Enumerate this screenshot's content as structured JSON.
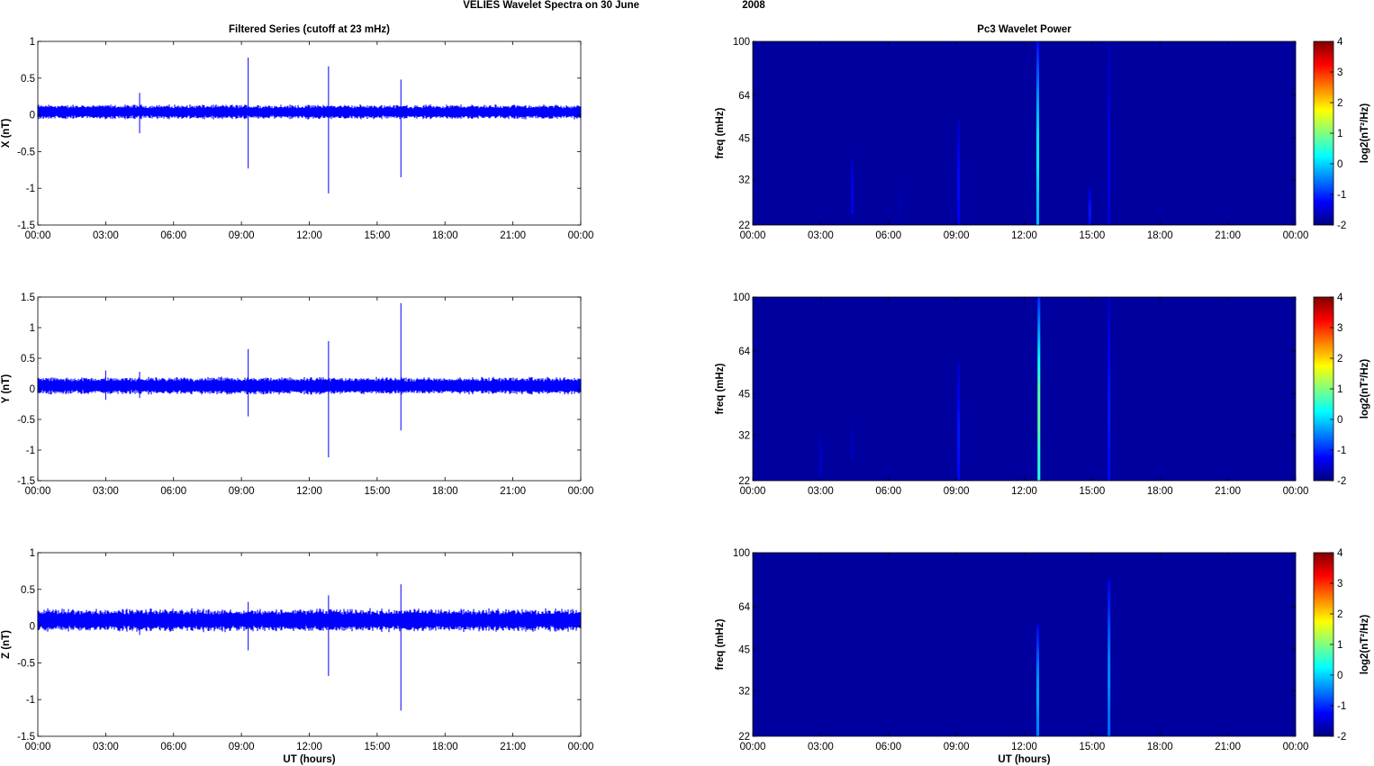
{
  "figure": {
    "title_left": "VELIES Wavelet Spectra on 30 June",
    "title_right": "2008"
  },
  "chart_data": [
    {
      "type": "line",
      "panel": "X",
      "title": "Filtered Series (cutoff at 23 mHz)",
      "xlabel": "",
      "ylabel": "X (nT)",
      "x_ticks": [
        "00:00",
        "03:00",
        "06:00",
        "09:00",
        "12:00",
        "15:00",
        "18:00",
        "21:00",
        "00:00"
      ],
      "xlim_hours": [
        0,
        24
      ],
      "ylim": [
        -1.5,
        1
      ],
      "y_ticks": [
        -1.5,
        -1,
        -0.5,
        0,
        0.5,
        1
      ],
      "y_tick_labels": [
        "-1.5",
        "-1",
        "-0.5",
        "0",
        "0.5",
        "1"
      ],
      "color": "#0000ff",
      "noise": {
        "mean": 0.04,
        "amplitude": 0.07
      },
      "spikes": [
        {
          "hour": 4.5,
          "max": 0.3,
          "min": -0.25
        },
        {
          "hour": 9.3,
          "max": 0.78,
          "min": -0.73
        },
        {
          "hour": 12.85,
          "max": 0.66,
          "min": -1.07
        },
        {
          "hour": 16.05,
          "max": 0.48,
          "min": -0.85
        }
      ]
    },
    {
      "type": "line",
      "panel": "Y",
      "title": "",
      "xlabel": "",
      "ylabel": "Y (nT)",
      "x_ticks": [
        "00:00",
        "03:00",
        "06:00",
        "09:00",
        "12:00",
        "15:00",
        "18:00",
        "21:00",
        "00:00"
      ],
      "xlim_hours": [
        0,
        24
      ],
      "ylim": [
        -1.5,
        1.5
      ],
      "y_ticks": [
        -1.5,
        -1,
        -0.5,
        0,
        0.5,
        1,
        1.5
      ],
      "y_tick_labels": [
        "-1.5",
        "-1",
        "-0.5",
        "0",
        "0.5",
        "1",
        "1.5"
      ],
      "color": "#0000ff",
      "noise": {
        "mean": 0.05,
        "amplitude": 0.1
      },
      "spikes": [
        {
          "hour": 3.0,
          "max": 0.3,
          "min": -0.18
        },
        {
          "hour": 4.5,
          "max": 0.28,
          "min": -0.15
        },
        {
          "hour": 9.3,
          "max": 0.65,
          "min": -0.45
        },
        {
          "hour": 12.85,
          "max": 0.78,
          "min": -1.12
        },
        {
          "hour": 16.05,
          "max": 1.4,
          "min": -0.68
        }
      ]
    },
    {
      "type": "line",
      "panel": "Z",
      "title": "",
      "xlabel": "UT (hours)",
      "ylabel": "Z (nT)",
      "x_ticks": [
        "00:00",
        "03:00",
        "06:00",
        "09:00",
        "12:00",
        "15:00",
        "18:00",
        "21:00",
        "00:00"
      ],
      "xlim_hours": [
        0,
        24
      ],
      "ylim": [
        -1.5,
        1
      ],
      "y_ticks": [
        -1.5,
        -1,
        -0.5,
        0,
        0.5,
        1
      ],
      "y_tick_labels": [
        "-1.5",
        "-1",
        "-0.5",
        "0",
        "0.5",
        "1"
      ],
      "color": "#0000ff",
      "noise": {
        "mean": 0.08,
        "amplitude": 0.11
      },
      "spikes": [
        {
          "hour": 4.5,
          "max": 0.15,
          "min": -0.12
        },
        {
          "hour": 9.3,
          "max": 0.33,
          "min": -0.33
        },
        {
          "hour": 12.85,
          "max": 0.42,
          "min": -0.68
        },
        {
          "hour": 16.05,
          "max": 0.57,
          "min": -1.15
        }
      ]
    },
    {
      "type": "heatmap",
      "panel": "X",
      "title": "Pc3 Wavelet Power",
      "xlabel": "",
      "ylabel": "freq (mHz)",
      "x_ticks": [
        "00:00",
        "03:00",
        "06:00",
        "09:00",
        "12:00",
        "15:00",
        "18:00",
        "21:00",
        "00:00"
      ],
      "y_ticks": [
        22,
        32,
        45,
        64,
        100
      ],
      "y_tick_labels": [
        "22",
        "32",
        "45",
        "64",
        "100"
      ],
      "y_scale": "log",
      "colorbar_label": "log2(nT²/Hz)",
      "colorbar_ticks": [
        "4",
        "3",
        "2",
        "1",
        "0",
        "-1",
        "-2"
      ],
      "clim": [
        -2,
        4
      ],
      "background": -2,
      "features": [
        {
          "hour": 4.4,
          "fmin": 24,
          "fmax": 38,
          "peak": -1.3
        },
        {
          "hour": 6.5,
          "fmin": 24,
          "fmax": 30,
          "peak": -1.8
        },
        {
          "hour": 9.1,
          "fmin": 22,
          "fmax": 52,
          "peak": -1.1
        },
        {
          "hour": 12.6,
          "fmin": 22,
          "fmax": 100,
          "peak": 0.8
        },
        {
          "hour": 14.9,
          "fmin": 22,
          "fmax": 30,
          "peak": -1.0
        },
        {
          "hour": 15.75,
          "fmin": 22,
          "fmax": 100,
          "peak": -1.4
        }
      ]
    },
    {
      "type": "heatmap",
      "panel": "Y",
      "title": "",
      "xlabel": "",
      "ylabel": "freq (mHz)",
      "x_ticks": [
        "00:00",
        "03:00",
        "06:00",
        "09:00",
        "12:00",
        "15:00",
        "18:00",
        "21:00",
        "00:00"
      ],
      "y_ticks": [
        22,
        32,
        45,
        64,
        100
      ],
      "y_tick_labels": [
        "22",
        "32",
        "45",
        "64",
        "100"
      ],
      "y_scale": "log",
      "colorbar_label": "log2(nT²/Hz)",
      "colorbar_ticks": [
        "4",
        "3",
        "2",
        "1",
        "0",
        "-1",
        "-2"
      ],
      "clim": [
        -2,
        4
      ],
      "background": -2,
      "features": [
        {
          "hour": 3.0,
          "fmin": 22,
          "fmax": 32,
          "peak": -1.6
        },
        {
          "hour": 4.4,
          "fmin": 26,
          "fmax": 35,
          "peak": -1.7
        },
        {
          "hour": 9.1,
          "fmin": 22,
          "fmax": 58,
          "peak": -1.0
        },
        {
          "hour": 12.65,
          "fmin": 22,
          "fmax": 100,
          "peak": 1.8
        },
        {
          "hour": 15.75,
          "fmin": 22,
          "fmax": 100,
          "peak": -1.0
        }
      ]
    },
    {
      "type": "heatmap",
      "panel": "Z",
      "title": "",
      "xlabel": "UT (hours)",
      "ylabel": "freq (mHz)",
      "x_ticks": [
        "00:00",
        "03:00",
        "06:00",
        "09:00",
        "12:00",
        "15:00",
        "18:00",
        "21:00",
        "00:00"
      ],
      "y_ticks": [
        22,
        32,
        45,
        64,
        100
      ],
      "y_tick_labels": [
        "22",
        "32",
        "45",
        "64",
        "100"
      ],
      "y_scale": "log",
      "colorbar_label": "log2(nT²/Hz)",
      "colorbar_ticks": [
        "4",
        "3",
        "2",
        "1",
        "0",
        "-1",
        "-2"
      ],
      "clim": [
        -2,
        4
      ],
      "background": -2,
      "features": [
        {
          "hour": 12.6,
          "fmin": 22,
          "fmax": 55,
          "peak": 0.2
        },
        {
          "hour": 15.75,
          "fmin": 22,
          "fmax": 80,
          "peak": 0.0
        }
      ]
    }
  ]
}
